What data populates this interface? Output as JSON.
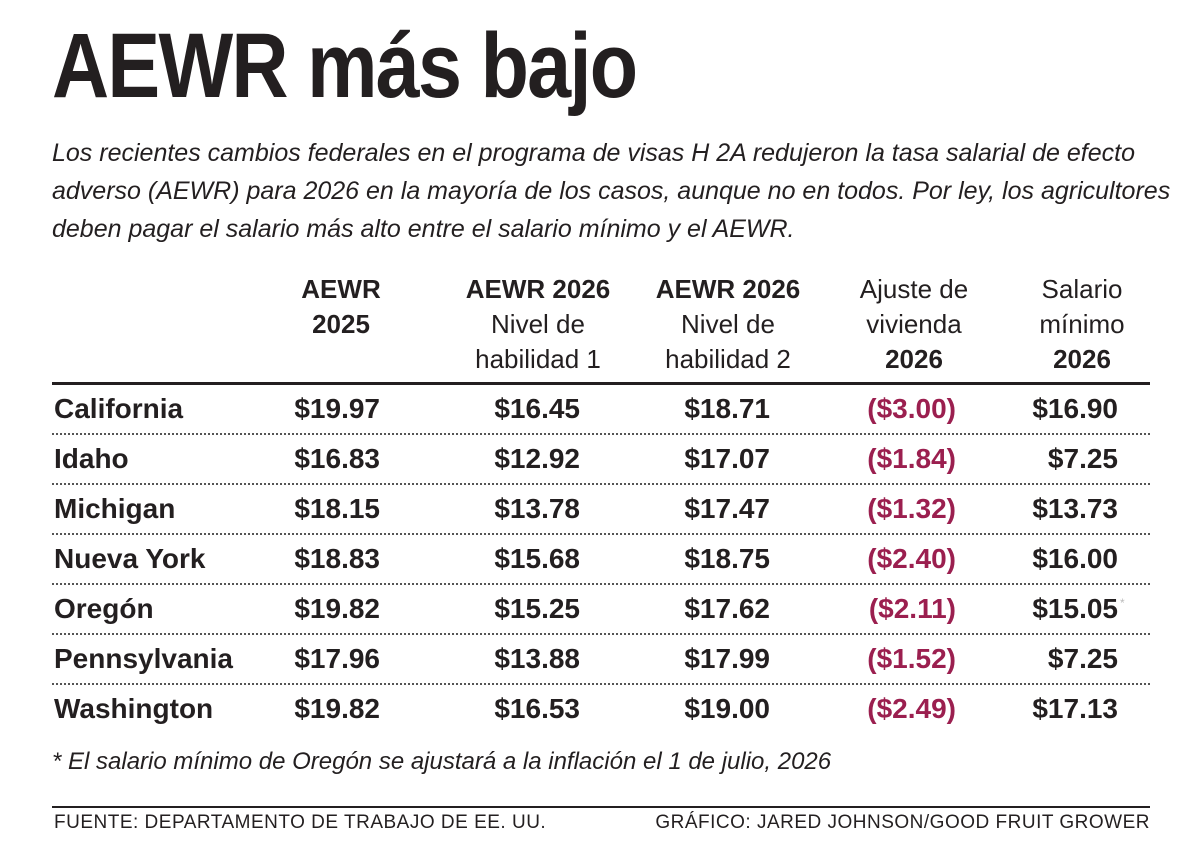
{
  "title": "AEWR más bajo",
  "subtitle": "Los recientes cambios federales en el programa de visas H 2A redujeron la tasa salarial de efecto adverso (AEWR) para 2026 en la mayoría de los casos, aunque no en todos. Por ley, los agricultores deben pagar el salario más alto entre el salario mínimo y el AEWR.",
  "chart_data": {
    "type": "table",
    "columns": [
      {
        "lines": [
          {
            "text": "AEWR",
            "bold": true
          },
          {
            "text": "2025",
            "bold": true
          }
        ]
      },
      {
        "lines": [
          {
            "text": "AEWR 2026",
            "bold": true
          },
          {
            "text": "Nivel de",
            "bold": false
          },
          {
            "text": "habilidad 1",
            "bold": false
          }
        ]
      },
      {
        "lines": [
          {
            "text": "AEWR 2026",
            "bold": true
          },
          {
            "text": "Nivel de",
            "bold": false
          },
          {
            "text": "habilidad 2",
            "bold": false
          }
        ]
      },
      {
        "lines": [
          {
            "text": "Ajuste de",
            "bold": false
          },
          {
            "text": "vivienda",
            "bold": false
          },
          {
            "text": "2026",
            "bold": true
          }
        ]
      },
      {
        "lines": [
          {
            "text": "Salario",
            "bold": false
          },
          {
            "text": "mínimo",
            "bold": false
          },
          {
            "text": "2026",
            "bold": true
          }
        ]
      }
    ],
    "rows": [
      {
        "state": "California",
        "values": [
          "$19.97",
          "$16.45",
          "$18.71",
          "($3.00)",
          "$16.90"
        ]
      },
      {
        "state": "Idaho",
        "values": [
          "$16.83",
          "$12.92",
          "$17.07",
          "($1.84)",
          "$7.25"
        ]
      },
      {
        "state": "Michigan",
        "values": [
          "$18.15",
          "$13.78",
          "$17.47",
          "($1.32)",
          "$13.73"
        ]
      },
      {
        "state": "Nueva York",
        "values": [
          "$18.83",
          "$15.68",
          "$18.75",
          "($2.40)",
          "$16.00"
        ]
      },
      {
        "state": "Oregón",
        "values": [
          "$19.82",
          "$15.25",
          "$17.62",
          "($2.11)",
          "$15.05"
        ]
      },
      {
        "state": "Pennsylvania",
        "values": [
          "$17.96",
          "$13.88",
          "$17.99",
          "($1.52)",
          "$7.25"
        ]
      },
      {
        "state": "Washington",
        "values": [
          "$19.82",
          "$16.53",
          "$19.00",
          "($2.49)",
          "$17.13"
        ]
      }
    ],
    "negative_color": "#9b1f4f"
  },
  "footnote": "* El salario mínimo de Oregón se ajustará a la inflación el 1 de julio, 2026",
  "source": "FUENTE: DEPARTAMENTO DE TRABAJO DE EE. UU.",
  "credit": "GRÁFICO: JARED JOHNSON/GOOD FRUIT GROWER",
  "mark": "*"
}
